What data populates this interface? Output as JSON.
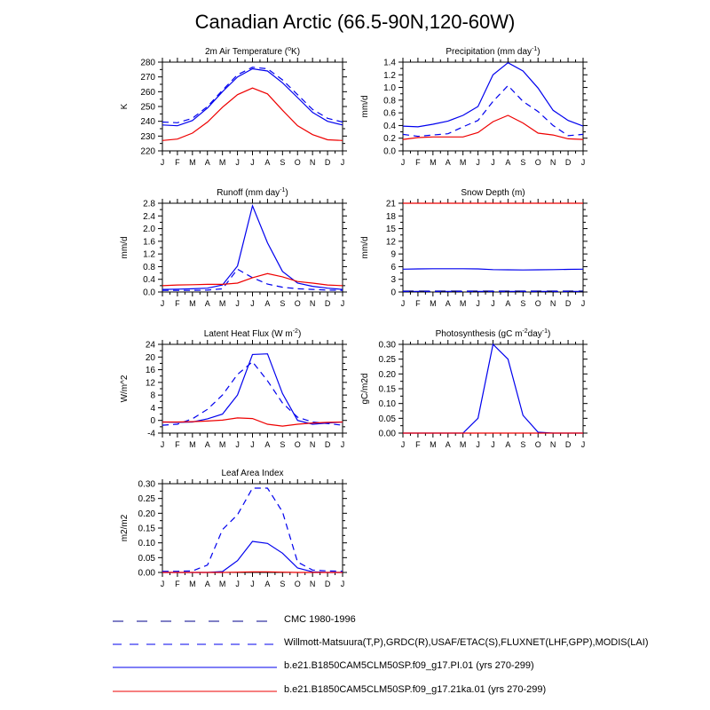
{
  "title": "Canadian Arctic (66.5-90N,120-60W)",
  "colors": {
    "blue": "#0000ee",
    "red": "#ee0000",
    "axis": "#000000"
  },
  "months": [
    "J",
    "F",
    "M",
    "A",
    "M",
    "J",
    "J",
    "A",
    "S",
    "O",
    "N",
    "D",
    "J"
  ],
  "legend": [
    {
      "label": "CMC 1980-1996",
      "color": "#00008b",
      "style": "long-dash"
    },
    {
      "label": "Willmott-Matsuura(T,P),GRDC(R),USAF/ETAC(S),FLUXNET(LHF,GPP),MODIS(LAI)",
      "color": "#0000ee",
      "style": "dash"
    },
    {
      "label": "b.e21.B1850CAM5CLM50SP.f09_g17.PI.01 (yrs 270-299)",
      "color": "#0000ee",
      "style": "solid"
    },
    {
      "label": "b.e21.B1850CAM5CLM50SP.f09_g17.21ka.01 (yrs 270-299)",
      "color": "#ee0000",
      "style": "solid"
    }
  ],
  "chart_data": [
    {
      "type": "line",
      "title": "2m Air Temperature (",
      "title_sup": "o",
      "title_tail": "K)",
      "ylabel": "K",
      "ylim": [
        220,
        280
      ],
      "yticks": [
        220,
        230,
        240,
        250,
        260,
        270,
        280
      ],
      "ytick_labels": [
        "220",
        "230",
        "240",
        "250",
        "260",
        "270",
        "280"
      ],
      "series": [
        {
          "name": "Willmott-Matsuura",
          "color": "#0000ee",
          "dash": "dash",
          "values": [
            239.5,
            239,
            242,
            250,
            261,
            271.5,
            276.5,
            275.5,
            268,
            258,
            248,
            242,
            239.5
          ]
        },
        {
          "name": "PI.01",
          "color": "#0000ee",
          "dash": "solid",
          "values": [
            237.5,
            237,
            240.5,
            249,
            260,
            270,
            275.5,
            274,
            266,
            256,
            246,
            240,
            237.5
          ]
        },
        {
          "name": "21ka.01",
          "color": "#ee0000",
          "dash": "solid",
          "values": [
            227,
            228,
            232,
            239.5,
            249.5,
            258,
            262.5,
            258.5,
            247.5,
            237,
            231,
            227.5,
            227
          ]
        }
      ]
    },
    {
      "type": "line",
      "title": "Precipitation (mm day",
      "title_sup": "-1",
      "title_tail": ")",
      "ylabel": "mm/d",
      "ylim": [
        0,
        1.4
      ],
      "yticks": [
        0,
        0.2,
        0.4,
        0.6,
        0.8,
        1.0,
        1.2,
        1.4
      ],
      "ytick_labels": [
        "0.0",
        "0.2",
        "0.4",
        "0.6",
        "0.8",
        "1.0",
        "1.2",
        "1.4"
      ],
      "series": [
        {
          "name": "Willmott-Matsuura",
          "color": "#0000ee",
          "dash": "dash",
          "values": [
            0.26,
            0.23,
            0.25,
            0.27,
            0.38,
            0.48,
            0.78,
            1.03,
            0.78,
            0.62,
            0.4,
            0.24,
            0.26
          ]
        },
        {
          "name": "PI.01",
          "color": "#0000ee",
          "dash": "solid",
          "values": [
            0.39,
            0.38,
            0.42,
            0.47,
            0.56,
            0.7,
            1.2,
            1.39,
            1.26,
            0.99,
            0.64,
            0.48,
            0.39
          ]
        },
        {
          "name": "21ka.01",
          "color": "#ee0000",
          "dash": "solid",
          "values": [
            0.18,
            0.21,
            0.22,
            0.22,
            0.22,
            0.29,
            0.46,
            0.56,
            0.44,
            0.28,
            0.25,
            0.19,
            0.18
          ]
        }
      ]
    },
    {
      "type": "line",
      "title": "Runoff (mm day",
      "title_sup": "-1",
      "title_tail": ")",
      "ylabel": "mm/d",
      "ylim": [
        0,
        2.8
      ],
      "yticks": [
        0,
        0.4,
        0.8,
        1.2,
        1.6,
        2.0,
        2.4,
        2.8
      ],
      "ytick_labels": [
        "0.0",
        "0.4",
        "0.8",
        "1.2",
        "1.6",
        "2.0",
        "2.4",
        "2.8"
      ],
      "series": [
        {
          "name": "GRDC",
          "color": "#0000ee",
          "dash": "dash",
          "values": [
            0.05,
            0.05,
            0.05,
            0.06,
            0.1,
            0.72,
            0.45,
            0.25,
            0.15,
            0.1,
            0.08,
            0.06,
            0.05
          ]
        },
        {
          "name": "PI.01",
          "color": "#0000ee",
          "dash": "solid",
          "values": [
            0.08,
            0.09,
            0.1,
            0.12,
            0.22,
            0.82,
            2.72,
            1.55,
            0.65,
            0.28,
            0.18,
            0.12,
            0.08
          ]
        },
        {
          "name": "21ka.01",
          "color": "#ee0000",
          "dash": "solid",
          "values": [
            0.2,
            0.22,
            0.23,
            0.24,
            0.24,
            0.28,
            0.45,
            0.58,
            0.48,
            0.33,
            0.28,
            0.22,
            0.2
          ]
        }
      ]
    },
    {
      "type": "line",
      "title": "Snow Depth (m)",
      "title_sup": "",
      "title_tail": "",
      "ylabel": "mm/d",
      "ylim": [
        0,
        21
      ],
      "yticks": [
        0,
        3,
        6,
        9,
        12,
        15,
        18,
        21
      ],
      "ytick_labels": [
        "0",
        "3",
        "6",
        "9",
        "12",
        "15",
        "18",
        "21"
      ],
      "series": [
        {
          "name": "CMC",
          "color": "#00008b",
          "dash": "longdash",
          "values": [
            0.2,
            0.2,
            0.2,
            0.2,
            0.2,
            0.2,
            0.2,
            0.2,
            0.2,
            0.2,
            0.2,
            0.2,
            0.2
          ]
        },
        {
          "name": "USAF/ETAC",
          "color": "#0000ee",
          "dash": "dash",
          "values": [
            0.15,
            0.15,
            0.15,
            0.15,
            0.15,
            0.15,
            0.15,
            0.15,
            0.15,
            0.15,
            0.15,
            0.15,
            0.15
          ]
        },
        {
          "name": "PI.01",
          "color": "#0000ee",
          "dash": "solid",
          "values": [
            5.4,
            5.45,
            5.5,
            5.5,
            5.5,
            5.45,
            5.3,
            5.25,
            5.2,
            5.25,
            5.3,
            5.35,
            5.4
          ]
        },
        {
          "name": "21ka.01",
          "color": "#ee0000",
          "dash": "solid",
          "values": [
            21,
            21,
            21,
            21,
            21,
            21,
            21,
            21,
            21,
            21,
            21,
            21,
            21
          ]
        }
      ]
    },
    {
      "type": "line",
      "title": "Latent Heat Flux (W m",
      "title_sup": "-2",
      "title_tail": ")",
      "ylabel": "W/m^2",
      "ylim": [
        -4,
        24
      ],
      "yticks": [
        -4,
        0,
        4,
        8,
        12,
        16,
        20,
        24
      ],
      "ytick_labels": [
        "-4",
        "0",
        "4",
        "8",
        "12",
        "16",
        "20",
        "24"
      ],
      "series": [
        {
          "name": "FLUXNET",
          "color": "#0000ee",
          "dash": "dash",
          "values": [
            -1.5,
            -1.2,
            0.5,
            3.5,
            8,
            14.5,
            18.5,
            12.5,
            5.5,
            1,
            -0.5,
            -1,
            -1.5
          ]
        },
        {
          "name": "PI.01",
          "color": "#0000ee",
          "dash": "solid",
          "values": [
            -0.5,
            -0.6,
            -0.5,
            0.5,
            2,
            8,
            20.8,
            21,
            8.5,
            0,
            -1.2,
            -0.8,
            -0.5
          ]
        },
        {
          "name": "21ka.01",
          "color": "#ee0000",
          "dash": "solid",
          "values": [
            -0.5,
            -0.5,
            -0.4,
            -0.2,
            0.1,
            0.8,
            0.6,
            -1.2,
            -1.8,
            -1.2,
            -0.8,
            -0.6,
            -0.5
          ]
        }
      ]
    },
    {
      "type": "line",
      "title": "Photosynthesis (gC m",
      "title_sup": "-2",
      "title_tail": "day",
      "title_sup2": "-1",
      "title_tail2": ")",
      "ylabel": "gC/m2d",
      "ylim": [
        0,
        0.3
      ],
      "yticks": [
        0,
        0.05,
        0.1,
        0.15,
        0.2,
        0.25,
        0.3
      ],
      "ytick_labels": [
        "0.00",
        "0.05",
        "0.10",
        "0.15",
        "0.20",
        "0.25",
        "0.30"
      ],
      "series": [
        {
          "name": "PI.01",
          "color": "#0000ee",
          "dash": "solid",
          "values": [
            0,
            0,
            0,
            0,
            0,
            0.05,
            0.3,
            0.25,
            0.06,
            0.003,
            0,
            0,
            0
          ]
        },
        {
          "name": "21ka.01",
          "color": "#ee0000",
          "dash": "solid",
          "values": [
            0,
            0,
            0,
            0,
            0,
            0,
            0,
            0,
            0,
            0,
            0,
            0,
            0
          ]
        }
      ]
    },
    {
      "type": "line",
      "title": "Leaf Area Index",
      "title_sup": "",
      "title_tail": "",
      "ylabel": "m2/m2",
      "ylim": [
        0,
        0.3
      ],
      "yticks": [
        0,
        0.05,
        0.1,
        0.15,
        0.2,
        0.25,
        0.3
      ],
      "ytick_labels": [
        "0.00",
        "0.05",
        "0.10",
        "0.15",
        "0.20",
        "0.25",
        "0.30"
      ],
      "series": [
        {
          "name": "MODIS",
          "color": "#0000ee",
          "dash": "dash",
          "values": [
            0.004,
            0.004,
            0.005,
            0.025,
            0.145,
            0.195,
            0.285,
            0.285,
            0.205,
            0.035,
            0.008,
            0.005,
            0.004
          ]
        },
        {
          "name": "PI.01",
          "color": "#0000ee",
          "dash": "solid",
          "values": [
            0,
            0,
            0,
            0,
            0.003,
            0.04,
            0.105,
            0.098,
            0.065,
            0.015,
            0.002,
            0,
            0
          ]
        },
        {
          "name": "21ka.01",
          "color": "#ee0000",
          "dash": "solid",
          "values": [
            0,
            0,
            0,
            0,
            0,
            0.001,
            0.002,
            0.002,
            0.001,
            0,
            0,
            0,
            0
          ]
        }
      ]
    }
  ]
}
